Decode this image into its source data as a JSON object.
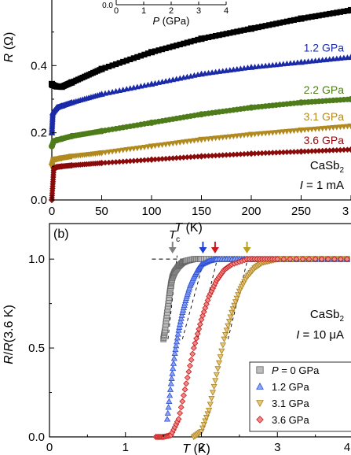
{
  "chart_data": [
    {
      "type": "scatter",
      "panel_label": "",
      "xlabel": "T (K)",
      "ylabel": "R (Ω)",
      "xlim": [
        0,
        300
      ],
      "ylim": [
        0,
        0.6
      ],
      "x_ticks": [
        "0",
        "50",
        "100",
        "150",
        "200",
        "250",
        "3"
      ],
      "y_ticks": [
        "0.0",
        "0.2",
        "0.4"
      ],
      "annotation": [
        "CaSb",
        "2",
        "I = 1 mA"
      ],
      "inset": {
        "xlabel": "P (GPa)",
        "x_ticks": [
          "0",
          "1",
          "2",
          "3",
          "4"
        ],
        "y_ticks": [
          "0.0"
        ]
      },
      "series": [
        {
          "name": "",
          "color": "#000000",
          "marker": "square",
          "x": [
            0,
            1,
            5,
            10,
            20,
            50,
            100,
            150,
            200,
            250,
            300
          ],
          "y": [
            0.345,
            0.342,
            0.338,
            0.337,
            0.35,
            0.39,
            0.44,
            0.48,
            0.51,
            0.54,
            0.565
          ]
        },
        {
          "name": "1.2 GPa",
          "color": "#1a2aa8",
          "marker": "triangle-up",
          "x": [
            0,
            1,
            5,
            10,
            20,
            50,
            100,
            150,
            200,
            250,
            300
          ],
          "y": [
            0.2,
            0.26,
            0.275,
            0.28,
            0.29,
            0.315,
            0.345,
            0.375,
            0.395,
            0.41,
            0.425
          ]
        },
        {
          "name": "2.2 GPa",
          "color": "#4e7c1a",
          "marker": "circle",
          "x": [
            0,
            2,
            5,
            10,
            20,
            50,
            100,
            150,
            200,
            250,
            300
          ],
          "y": [
            0.16,
            0.175,
            0.178,
            0.182,
            0.19,
            0.205,
            0.23,
            0.255,
            0.275,
            0.29,
            0.3
          ]
        },
        {
          "name": "3.1 GPa",
          "color": "#b08a1e",
          "marker": "triangle-down",
          "x": [
            0,
            2,
            5,
            10,
            20,
            50,
            100,
            150,
            200,
            250,
            300
          ],
          "y": [
            0.1,
            0.12,
            0.122,
            0.125,
            0.13,
            0.14,
            0.16,
            0.18,
            0.195,
            0.208,
            0.22
          ]
        },
        {
          "name": "3.6 GPa",
          "color": "#8b0a0a",
          "marker": "diamond",
          "x": [
            0,
            2,
            5,
            10,
            20,
            50,
            100,
            150,
            200,
            250,
            300
          ],
          "y": [
            0.0,
            0.095,
            0.098,
            0.1,
            0.103,
            0.11,
            0.12,
            0.13,
            0.138,
            0.144,
            0.15
          ]
        }
      ]
    },
    {
      "type": "scatter",
      "panel_label": "(b)",
      "xlabel": "T (K)",
      "ylabel": "R/R(3.6 K)",
      "xlim": [
        0,
        4
      ],
      "ylim": [
        0,
        1.2
      ],
      "x_ticks": [
        "0",
        "1",
        "2",
        "3",
        "4"
      ],
      "y_ticks": [
        "0.0",
        "0.5",
        "1.0"
      ],
      "annotation": [
        "CaSb",
        "2",
        "I = 10 μA"
      ],
      "tc_label": "T",
      "tc_sub": "c",
      "legend_position": "bottom-right",
      "arrows": [
        {
          "x": 1.62,
          "color": "#808080"
        },
        {
          "x": 2.02,
          "color": "#1f3fd6"
        },
        {
          "x": 2.18,
          "color": "#cc1a1a"
        },
        {
          "x": 2.6,
          "color": "#b8a01e"
        }
      ],
      "series": [
        {
          "name": "P = 0 GPa",
          "color": "#666666",
          "fill": "#bdbdbd",
          "marker": "square",
          "x": [
            1.5,
            1.52,
            1.55,
            1.58,
            1.6,
            1.62,
            1.65,
            1.7,
            1.75,
            1.8,
            1.9,
            2.0,
            2.2,
            2.5,
            3.0,
            3.5,
            4.0
          ],
          "y": [
            0.55,
            0.6,
            0.7,
            0.8,
            0.86,
            0.9,
            0.93,
            0.96,
            0.98,
            0.99,
            1.0,
            1.0,
            1.0,
            1.0,
            1.0,
            1.0,
            1.0
          ]
        },
        {
          "name": "1.2 GPa",
          "color": "#2a4fd6",
          "fill": "#8ea3f0",
          "marker": "triangle-up",
          "x": [
            1.55,
            1.6,
            1.65,
            1.7,
            1.75,
            1.8,
            1.85,
            1.9,
            1.95,
            2.0,
            2.1,
            2.2,
            2.4,
            2.6,
            3.0,
            3.5,
            4.0
          ],
          "y": [
            0.1,
            0.3,
            0.47,
            0.6,
            0.7,
            0.78,
            0.85,
            0.9,
            0.94,
            0.97,
            0.99,
            1.0,
            1.0,
            1.0,
            1.0,
            1.0,
            1.0
          ]
        },
        {
          "name": "3.1 GPa",
          "color": "#a8801a",
          "fill": "#e6c47a",
          "marker": "triangle-down",
          "x": [
            1.9,
            2.0,
            2.1,
            2.2,
            2.3,
            2.4,
            2.5,
            2.6,
            2.7,
            2.8,
            2.9,
            3.0,
            3.2,
            3.5,
            4.0
          ],
          "y": [
            0.0,
            0.03,
            0.15,
            0.35,
            0.55,
            0.7,
            0.82,
            0.9,
            0.95,
            0.98,
            0.99,
            1.0,
            1.0,
            1.0,
            1.0
          ]
        },
        {
          "name": "3.6 GPa",
          "color": "#c41a1a",
          "fill": "#f08a8a",
          "marker": "diamond",
          "x": [
            1.4,
            1.5,
            1.6,
            1.7,
            1.8,
            1.9,
            2.0,
            2.1,
            2.2,
            2.3,
            2.4,
            2.6,
            2.8,
            3.0,
            3.5,
            4.0
          ],
          "y": [
            0.0,
            0.0,
            0.01,
            0.1,
            0.3,
            0.5,
            0.66,
            0.79,
            0.88,
            0.94,
            0.97,
            1.0,
            1.0,
            1.0,
            1.0,
            1.0
          ]
        }
      ]
    }
  ]
}
